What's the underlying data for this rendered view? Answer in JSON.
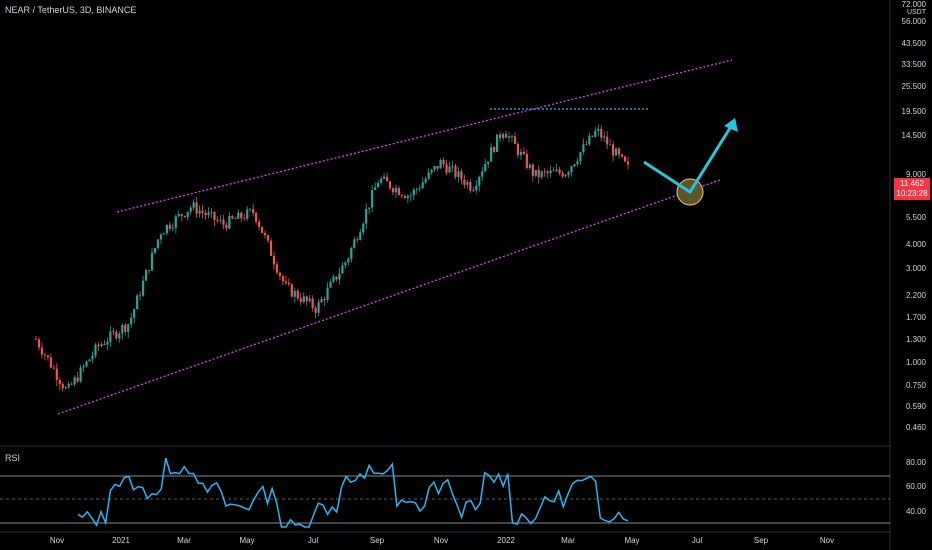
{
  "header": {
    "title": "NEAR / TetherUS, 3D, BINANCE"
  },
  "price_axis": {
    "unit": "USDT",
    "ticks": [
      "72.000",
      "56.000",
      "43.500",
      "33.500",
      "25.500",
      "19.500",
      "14.500",
      "9.000",
      "7.000",
      "5.500",
      "4.000",
      "3.000",
      "2.200",
      "1.700",
      "1.300",
      "1.000",
      "0.750",
      "0.590",
      "0.460"
    ],
    "last_price": "11.462",
    "countdown": "10:23:28",
    "last_price_color": "#f23645"
  },
  "time_axis": {
    "labels": [
      "Nov",
      "2021",
      "Mar",
      "May",
      "Jul",
      "Sep",
      "Nov",
      "2022",
      "Mar",
      "May",
      "Jul",
      "Sep",
      "Nov"
    ]
  },
  "rsi": {
    "label": "RSI",
    "ticks": [
      "80.00",
      "60.00",
      "40.00"
    ],
    "line_color": "#29b6f6"
  },
  "colors": {
    "up": "#26a69a",
    "down": "#ef5350",
    "channel": "#e040fb",
    "resistance": "#29b6f6",
    "arrow": "#26c6da",
    "circle": "#8d7d3b"
  },
  "chart_data": {
    "type": "candlestick",
    "title": "NEAR / TetherUS, 3D, BINANCE",
    "y_scale": "log",
    "last_price": 11.462,
    "price_path": [
      {
        "date": "2020-10",
        "price": 1.2
      },
      {
        "date": "2020-11",
        "price": 0.6
      },
      {
        "date": "2020-12",
        "price": 1.1
      },
      {
        "date": "2021-01",
        "price": 1.5
      },
      {
        "date": "2021-02",
        "price": 5.0
      },
      {
        "date": "2021-03",
        "price": 7.0
      },
      {
        "date": "2021-04",
        "price": 5.5
      },
      {
        "date": "2021-05",
        "price": 6.5
      },
      {
        "date": "2021-06",
        "price": 2.4
      },
      {
        "date": "2021-07",
        "price": 1.8
      },
      {
        "date": "2021-08",
        "price": 3.5
      },
      {
        "date": "2021-09",
        "price": 10.0
      },
      {
        "date": "2021-10",
        "price": 8.0
      },
      {
        "date": "2021-11",
        "price": 12.5
      },
      {
        "date": "2021-12",
        "price": 9.0
      },
      {
        "date": "2022-01",
        "price": 19.5
      },
      {
        "date": "2022-02",
        "price": 10.5
      },
      {
        "date": "2022-03",
        "price": 11.0
      },
      {
        "date": "2022-04",
        "price": 19.0
      },
      {
        "date": "2022-05",
        "price": 11.462
      }
    ]
  }
}
